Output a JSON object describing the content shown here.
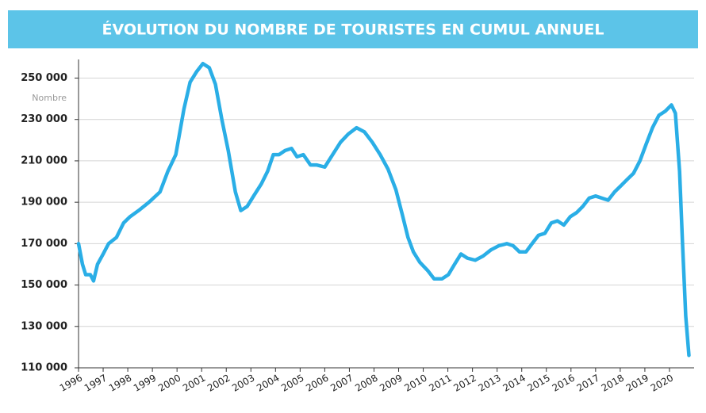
{
  "chart_data": {
    "type": "line",
    "title": "ÉVOLUTION DU NOMBRE DE TOURISTES EN CUMUL ANNUEL",
    "y_label": "Nombre",
    "x": [
      1996.0,
      1996.16,
      1996.29,
      1996.48,
      1996.61,
      1996.77,
      1997.0,
      1997.22,
      1997.54,
      1997.83,
      1998.09,
      1998.44,
      1998.86,
      1999.31,
      1999.63,
      1999.95,
      2000.28,
      2000.53,
      2000.79,
      2001.05,
      2001.31,
      2001.56,
      2001.82,
      2002.08,
      2002.37,
      2002.59,
      2002.85,
      2003.11,
      2003.43,
      2003.68,
      2003.91,
      2004.14,
      2004.39,
      2004.65,
      2004.87,
      2005.13,
      2005.42,
      2005.68,
      2006.0,
      2006.32,
      2006.64,
      2006.96,
      2007.29,
      2007.61,
      2007.93,
      2008.25,
      2008.57,
      2008.89,
      2009.15,
      2009.38,
      2009.6,
      2009.86,
      2010.18,
      2010.44,
      2010.76,
      2011.02,
      2011.27,
      2011.53,
      2011.79,
      2012.11,
      2012.43,
      2012.75,
      2013.07,
      2013.4,
      2013.65,
      2013.91,
      2014.17,
      2014.42,
      2014.68,
      2014.94,
      2015.2,
      2015.45,
      2015.71,
      2015.97,
      2016.23,
      2016.48,
      2016.74,
      2017.0,
      2017.25,
      2017.51,
      2017.77,
      2018.03,
      2018.28,
      2018.54,
      2018.8,
      2019.05,
      2019.31,
      2019.57,
      2019.83,
      2020.08,
      2020.24,
      2020.41,
      2020.53,
      2020.66,
      2020.79
    ],
    "series": [
      {
        "name": "Nombre de touristes",
        "color": "#2aaee6",
        "values": [
          170000,
          160000,
          155000,
          155000,
          152000,
          160000,
          165000,
          170000,
          173000,
          180000,
          183000,
          186000,
          190000,
          195000,
          205000,
          213000,
          235000,
          248000,
          253000,
          257000,
          255000,
          247000,
          230000,
          215000,
          195000,
          186000,
          188000,
          193000,
          199000,
          205000,
          213000,
          213000,
          215000,
          216000,
          212000,
          213000,
          208000,
          208000,
          207000,
          213000,
          219000,
          223000,
          226000,
          224000,
          219000,
          213000,
          206000,
          196000,
          184000,
          173000,
          166000,
          161000,
          157000,
          153000,
          153000,
          155000,
          160000,
          165000,
          163000,
          162000,
          164000,
          167000,
          169000,
          170000,
          169000,
          166000,
          166000,
          170000,
          174000,
          175000,
          180000,
          181000,
          179000,
          183000,
          185000,
          188000,
          192000,
          193000,
          192000,
          191000,
          195000,
          198000,
          201000,
          204000,
          210000,
          218000,
          226000,
          232000,
          234000,
          237000,
          233000,
          205000,
          170000,
          135000,
          116000
        ]
      }
    ],
    "xlim": [
      1996,
      2021
    ],
    "xticks": [
      1996,
      1997,
      1998,
      1999,
      2000,
      2001,
      2002,
      2003,
      2004,
      2005,
      2006,
      2007,
      2008,
      2009,
      2010,
      2011,
      2012,
      2013,
      2014,
      2015,
      2016,
      2017,
      2018,
      2019,
      2020
    ],
    "ylim": [
      110000,
      259000
    ],
    "yticks": [
      {
        "value": 110000,
        "label": "110 000"
      },
      {
        "value": 130000,
        "label": "130 000"
      },
      {
        "value": 150000,
        "label": "150 000"
      },
      {
        "value": 170000,
        "label": "170 000"
      },
      {
        "value": 190000,
        "label": "190 000"
      },
      {
        "value": 210000,
        "label": "210 000"
      },
      {
        "value": 230000,
        "label": "230 000"
      },
      {
        "value": 250000,
        "label": "250 000"
      }
    ],
    "grid": true
  }
}
